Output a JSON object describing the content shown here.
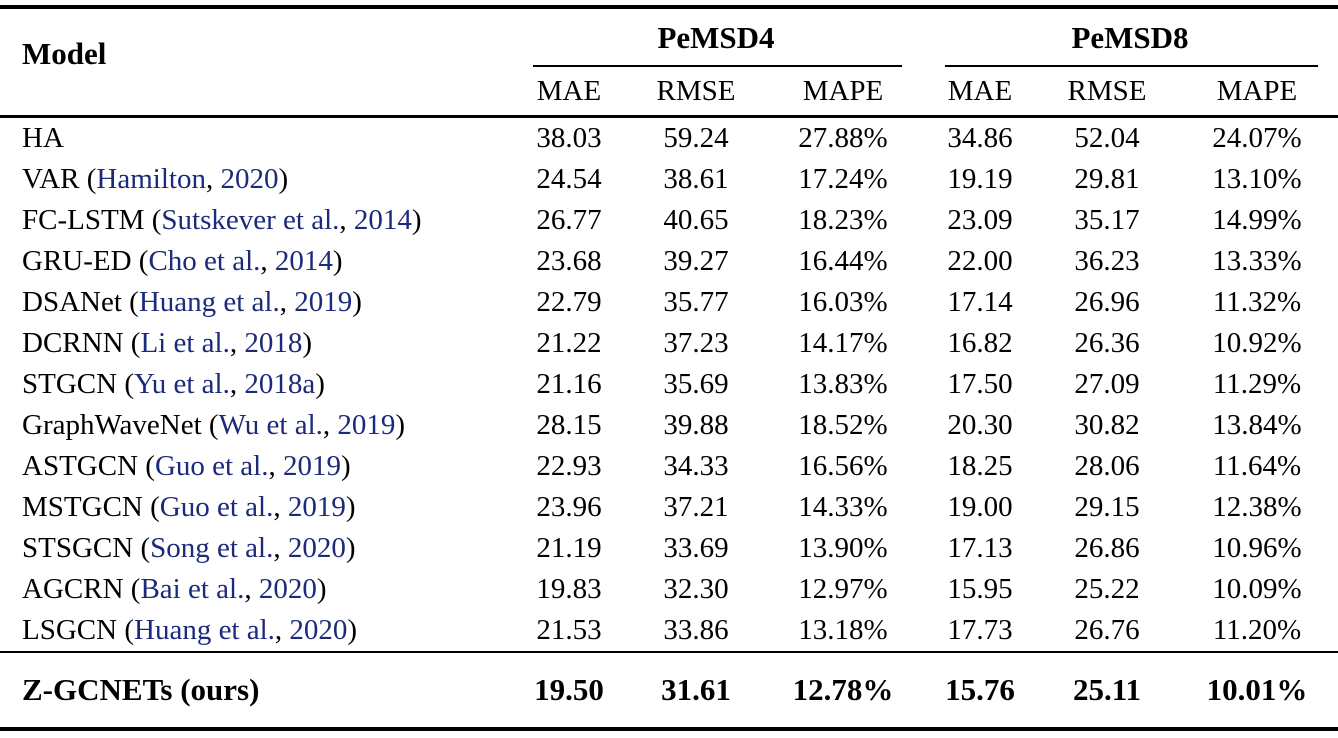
{
  "table": {
    "header": {
      "model_label": "Model",
      "groups": [
        {
          "label": "PeMSD4",
          "metrics": [
            "MAE",
            "RMSE",
            "MAPE"
          ]
        },
        {
          "label": "PeMSD8",
          "metrics": [
            "MAE",
            "RMSE",
            "MAPE"
          ]
        }
      ]
    },
    "citation_format": {
      "prefix": " (",
      "separator": ", ",
      "suffix": ")"
    },
    "rows": [
      {
        "name": "HA",
        "cite_author": null,
        "cite_year": null,
        "values": [
          "38.03",
          "59.24",
          "27.88%",
          "34.86",
          "52.04",
          "24.07%"
        ]
      },
      {
        "name": "VAR",
        "cite_author": "Hamilton",
        "cite_year": "2020",
        "values": [
          "24.54",
          "38.61",
          "17.24%",
          "19.19",
          "29.81",
          "13.10%"
        ]
      },
      {
        "name": "FC-LSTM",
        "cite_author": "Sutskever et al.",
        "cite_year": "2014",
        "values": [
          "26.77",
          "40.65",
          "18.23%",
          "23.09",
          "35.17",
          "14.99%"
        ]
      },
      {
        "name": "GRU-ED",
        "cite_author": "Cho et al.",
        "cite_year": "2014",
        "values": [
          "23.68",
          "39.27",
          "16.44%",
          "22.00",
          "36.23",
          "13.33%"
        ]
      },
      {
        "name": "DSANet",
        "cite_author": "Huang et al.",
        "cite_year": "2019",
        "values": [
          "22.79",
          "35.77",
          "16.03%",
          "17.14",
          "26.96",
          "11.32%"
        ]
      },
      {
        "name": "DCRNN",
        "cite_author": "Li et al.",
        "cite_year": "2018",
        "values": [
          "21.22",
          "37.23",
          "14.17%",
          "16.82",
          "26.36",
          "10.92%"
        ]
      },
      {
        "name": "STGCN",
        "cite_author": "Yu et al.",
        "cite_year": "2018a",
        "values": [
          "21.16",
          "35.69",
          "13.83%",
          "17.50",
          "27.09",
          "11.29%"
        ]
      },
      {
        "name": "GraphWaveNet",
        "cite_author": "Wu et al.",
        "cite_year": "2019",
        "values": [
          "28.15",
          "39.88",
          "18.52%",
          "20.30",
          "30.82",
          "13.84%"
        ]
      },
      {
        "name": "ASTGCN",
        "cite_author": "Guo et al.",
        "cite_year": "2019",
        "values": [
          "22.93",
          "34.33",
          "16.56%",
          "18.25",
          "28.06",
          "11.64%"
        ]
      },
      {
        "name": "MSTGCN",
        "cite_author": "Guo et al.",
        "cite_year": "2019",
        "values": [
          "23.96",
          "37.21",
          "14.33%",
          "19.00",
          "29.15",
          "12.38%"
        ]
      },
      {
        "name": "STSGCN",
        "cite_author": "Song et al.",
        "cite_year": "2020",
        "values": [
          "21.19",
          "33.69",
          "13.90%",
          "17.13",
          "26.86",
          "10.96%"
        ]
      },
      {
        "name": "AGCRN",
        "cite_author": "Bai et al.",
        "cite_year": "2020",
        "values": [
          "19.83",
          "32.30",
          "12.97%",
          "15.95",
          "25.22",
          "10.09%"
        ]
      },
      {
        "name": "LSGCN",
        "cite_author": "Huang et al.",
        "cite_year": "2020",
        "values": [
          "21.53",
          "33.86",
          "13.18%",
          "17.73",
          "26.76",
          "11.20%"
        ]
      }
    ],
    "footer_row": {
      "name": "Z-GCNETs (ours)",
      "values": [
        "19.50",
        "31.61",
        "12.78%",
        "15.76",
        "25.11",
        "10.01%"
      ]
    },
    "colors": {
      "citation": "#1b2a7b",
      "text": "#000000",
      "rule": "#000000"
    }
  }
}
